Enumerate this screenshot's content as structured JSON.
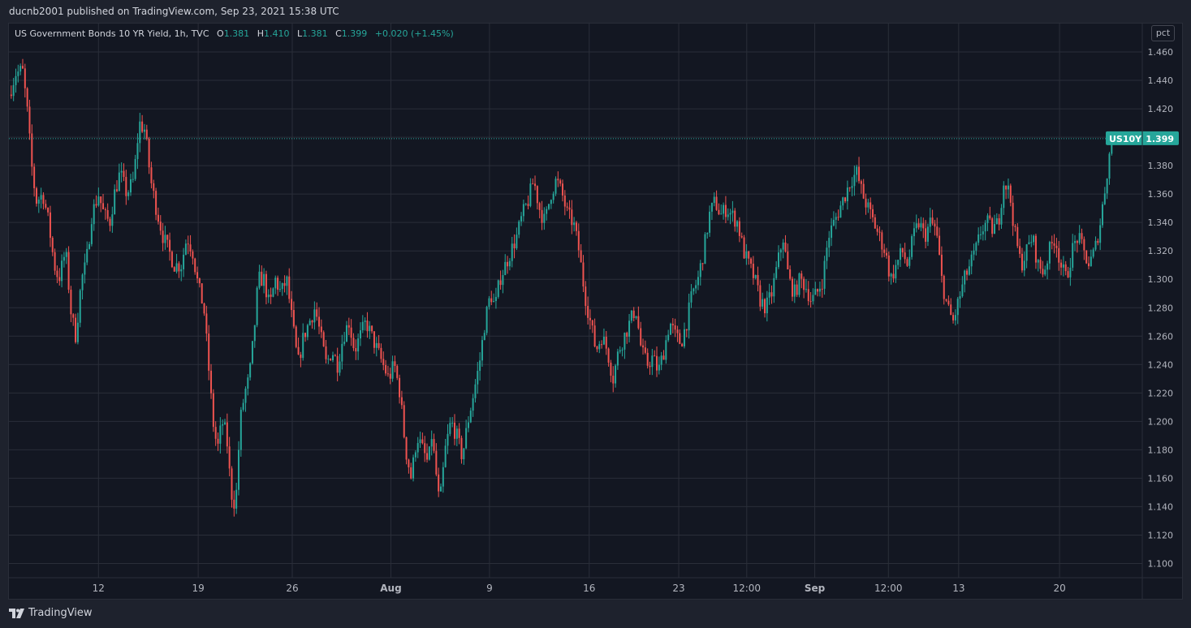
{
  "header": {
    "publish_text": "ducnb2001 published on TradingView.com, Sep 23, 2021 15:38 UTC"
  },
  "legend": {
    "symbol": "US Government Bonds 10 YR Yield, 1h, TVC",
    "o_label": "O",
    "o_value": "1.381",
    "h_label": "H",
    "h_value": "1.410",
    "l_label": "L",
    "l_value": "1.381",
    "c_label": "C",
    "c_value": "1.399",
    "change": "+0.020 (+1.45%)"
  },
  "unit_label": "pct",
  "price_tag": {
    "ticker": "US10Y",
    "value": "1.399"
  },
  "footer": {
    "brand": "TradingView"
  },
  "colors": {
    "up": "#26a69a",
    "down": "#ef5350",
    "background": "#131722",
    "grid": "#2a2e39"
  },
  "chart_data": {
    "type": "candlestick",
    "title": "US Government Bonds 10 YR Yield, 1h, TVC",
    "ylim": [
      1.09,
      1.48
    ],
    "y_ticks": [
      "1.460",
      "1.440",
      "1.420",
      "1.400",
      "1.380",
      "1.360",
      "1.340",
      "1.320",
      "1.300",
      "1.280",
      "1.260",
      "1.240",
      "1.220",
      "1.200",
      "1.180",
      "1.160",
      "1.140",
      "1.120",
      "1.100"
    ],
    "x_ticks": [
      "12",
      "19",
      "26",
      "Aug",
      "9",
      "16",
      "23",
      "12:00",
      "Sep",
      "12:00",
      "13",
      "20"
    ],
    "x_range": [
      0,
      100
    ],
    "x_tick_positions": [
      7.9,
      16.7,
      25.0,
      33.7,
      42.4,
      51.2,
      59.1,
      65.1,
      71.1,
      77.6,
      83.8,
      92.7
    ],
    "x_tick_bold": [
      false,
      false,
      false,
      true,
      false,
      false,
      false,
      false,
      true,
      false,
      false,
      false
    ],
    "last_price": 1.399,
    "path": [
      [
        0,
        1.43
      ],
      [
        0.6,
        1.445
      ],
      [
        1.2,
        1.447
      ],
      [
        1.6,
        1.42
      ],
      [
        2.0,
        1.38
      ],
      [
        2.4,
        1.355
      ],
      [
        3.0,
        1.36
      ],
      [
        3.5,
        1.34
      ],
      [
        4.0,
        1.31
      ],
      [
        4.4,
        1.3
      ],
      [
        5.0,
        1.32
      ],
      [
        5.5,
        1.275
      ],
      [
        5.9,
        1.26
      ],
      [
        6.4,
        1.3
      ],
      [
        6.8,
        1.31
      ],
      [
        7.3,
        1.345
      ],
      [
        7.9,
        1.36
      ],
      [
        8.4,
        1.345
      ],
      [
        8.9,
        1.34
      ],
      [
        9.3,
        1.36
      ],
      [
        9.8,
        1.375
      ],
      [
        10.4,
        1.36
      ],
      [
        11.0,
        1.37
      ],
      [
        11.5,
        1.41
      ],
      [
        12.0,
        1.405
      ],
      [
        12.5,
        1.37
      ],
      [
        13.0,
        1.35
      ],
      [
        13.6,
        1.33
      ],
      [
        14.1,
        1.32
      ],
      [
        14.6,
        1.31
      ],
      [
        15.2,
        1.31
      ],
      [
        15.7,
        1.33
      ],
      [
        16.2,
        1.32
      ],
      [
        16.7,
        1.295
      ],
      [
        17.2,
        1.28
      ],
      [
        17.6,
        1.24
      ],
      [
        18.0,
        1.2
      ],
      [
        18.4,
        1.18
      ],
      [
        18.8,
        1.2
      ],
      [
        19.2,
        1.19
      ],
      [
        19.6,
        1.15
      ],
      [
        20.0,
        1.14
      ],
      [
        20.4,
        1.2
      ],
      [
        20.8,
        1.22
      ],
      [
        21.2,
        1.23
      ],
      [
        21.6,
        1.26
      ],
      [
        22.0,
        1.3
      ],
      [
        22.5,
        1.3
      ],
      [
        23.0,
        1.28
      ],
      [
        23.5,
        1.3
      ],
      [
        24.0,
        1.29
      ],
      [
        24.5,
        1.3
      ],
      [
        25.0,
        1.27
      ],
      [
        25.5,
        1.24
      ],
      [
        26.0,
        1.26
      ],
      [
        26.5,
        1.27
      ],
      [
        27.0,
        1.28
      ],
      [
        27.5,
        1.26
      ],
      [
        28.0,
        1.24
      ],
      [
        28.5,
        1.25
      ],
      [
        29.0,
        1.24
      ],
      [
        29.5,
        1.26
      ],
      [
        30.0,
        1.27
      ],
      [
        30.5,
        1.25
      ],
      [
        31.0,
        1.26
      ],
      [
        31.5,
        1.27
      ],
      [
        32.0,
        1.26
      ],
      [
        32.5,
        1.25
      ],
      [
        33.0,
        1.24
      ],
      [
        33.5,
        1.23
      ],
      [
        34.0,
        1.24
      ],
      [
        34.5,
        1.22
      ],
      [
        35.0,
        1.18
      ],
      [
        35.5,
        1.16
      ],
      [
        36.0,
        1.19
      ],
      [
        36.5,
        1.18
      ],
      [
        37.0,
        1.17
      ],
      [
        37.3,
        1.19
      ],
      [
        37.6,
        1.17
      ],
      [
        38.0,
        1.14
      ],
      [
        38.5,
        1.18
      ],
      [
        39.0,
        1.2
      ],
      [
        39.5,
        1.19
      ],
      [
        40.0,
        1.175
      ],
      [
        40.5,
        1.2
      ],
      [
        41.0,
        1.22
      ],
      [
        41.5,
        1.24
      ],
      [
        42.0,
        1.27
      ],
      [
        42.5,
        1.29
      ],
      [
        42.9,
        1.28
      ],
      [
        43.3,
        1.3
      ],
      [
        43.8,
        1.31
      ],
      [
        44.3,
        1.32
      ],
      [
        44.8,
        1.33
      ],
      [
        45.3,
        1.345
      ],
      [
        45.8,
        1.355
      ],
      [
        46.3,
        1.37
      ],
      [
        46.8,
        1.35
      ],
      [
        47.3,
        1.34
      ],
      [
        47.8,
        1.36
      ],
      [
        48.3,
        1.37
      ],
      [
        48.8,
        1.36
      ],
      [
        49.3,
        1.345
      ],
      [
        49.8,
        1.34
      ],
      [
        50.3,
        1.32
      ],
      [
        50.8,
        1.29
      ],
      [
        51.3,
        1.27
      ],
      [
        51.8,
        1.25
      ],
      [
        52.3,
        1.26
      ],
      [
        52.8,
        1.25
      ],
      [
        53.3,
        1.23
      ],
      [
        53.8,
        1.25
      ],
      [
        54.3,
        1.26
      ],
      [
        54.8,
        1.27
      ],
      [
        55.3,
        1.28
      ],
      [
        55.8,
        1.25
      ],
      [
        56.3,
        1.24
      ],
      [
        56.8,
        1.245
      ],
      [
        57.3,
        1.235
      ],
      [
        57.8,
        1.25
      ],
      [
        58.3,
        1.27
      ],
      [
        58.8,
        1.26
      ],
      [
        59.3,
        1.255
      ],
      [
        59.8,
        1.27
      ],
      [
        60.3,
        1.29
      ],
      [
        60.8,
        1.3
      ],
      [
        61.3,
        1.32
      ],
      [
        61.8,
        1.345
      ],
      [
        62.3,
        1.355
      ],
      [
        62.8,
        1.345
      ],
      [
        63.3,
        1.35
      ],
      [
        63.8,
        1.345
      ],
      [
        64.3,
        1.34
      ],
      [
        64.8,
        1.32
      ],
      [
        65.3,
        1.31
      ],
      [
        65.8,
        1.3
      ],
      [
        66.3,
        1.285
      ],
      [
        66.8,
        1.28
      ],
      [
        67.3,
        1.29
      ],
      [
        67.8,
        1.31
      ],
      [
        68.3,
        1.33
      ],
      [
        68.8,
        1.3
      ],
      [
        69.3,
        1.29
      ],
      [
        69.8,
        1.3
      ],
      [
        70.3,
        1.295
      ],
      [
        70.8,
        1.285
      ],
      [
        71.3,
        1.29
      ],
      [
        71.8,
        1.3
      ],
      [
        72.3,
        1.33
      ],
      [
        72.8,
        1.34
      ],
      [
        73.3,
        1.35
      ],
      [
        73.8,
        1.36
      ],
      [
        74.3,
        1.37
      ],
      [
        74.8,
        1.375
      ],
      [
        75.3,
        1.36
      ],
      [
        75.8,
        1.35
      ],
      [
        76.3,
        1.34
      ],
      [
        76.8,
        1.33
      ],
      [
        77.3,
        1.32
      ],
      [
        77.8,
        1.3
      ],
      [
        78.3,
        1.31
      ],
      [
        78.8,
        1.32
      ],
      [
        79.3,
        1.31
      ],
      [
        79.8,
        1.33
      ],
      [
        80.3,
        1.34
      ],
      [
        80.8,
        1.33
      ],
      [
        81.3,
        1.34
      ],
      [
        81.8,
        1.335
      ],
      [
        82.3,
        1.3
      ],
      [
        82.8,
        1.28
      ],
      [
        83.3,
        1.27
      ],
      [
        83.8,
        1.285
      ],
      [
        84.3,
        1.3
      ],
      [
        84.8,
        1.31
      ],
      [
        85.3,
        1.32
      ],
      [
        85.8,
        1.335
      ],
      [
        86.3,
        1.34
      ],
      [
        86.8,
        1.335
      ],
      [
        87.3,
        1.34
      ],
      [
        87.8,
        1.37
      ],
      [
        88.3,
        1.36
      ],
      [
        88.8,
        1.33
      ],
      [
        89.3,
        1.31
      ],
      [
        89.8,
        1.32
      ],
      [
        90.3,
        1.33
      ],
      [
        90.8,
        1.31
      ],
      [
        91.3,
        1.305
      ],
      [
        91.8,
        1.32
      ],
      [
        92.3,
        1.33
      ],
      [
        92.8,
        1.31
      ],
      [
        93.3,
        1.3
      ],
      [
        93.8,
        1.32
      ],
      [
        94.3,
        1.33
      ],
      [
        94.8,
        1.32
      ],
      [
        95.3,
        1.31
      ],
      [
        95.8,
        1.32
      ],
      [
        96.3,
        1.34
      ],
      [
        96.8,
        1.37
      ],
      [
        97.3,
        1.399
      ]
    ]
  }
}
